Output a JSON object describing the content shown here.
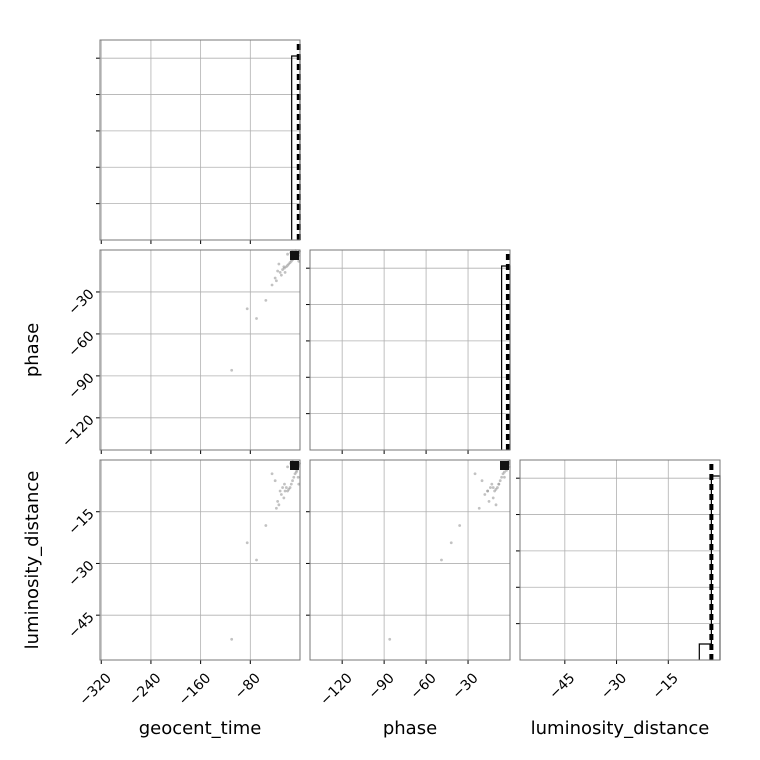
{
  "chart_data": {
    "type": "scatter",
    "kind": "corner-plot",
    "parameters": [
      "geocent_time",
      "phase",
      "luminosity_distance"
    ],
    "axis_labels": {
      "geocent_time": "geocent_time",
      "phase": "phase",
      "luminosity_distance": "luminosity_distance"
    },
    "ranges": {
      "geocent_time": [
        -322,
        0
      ],
      "phase": [
        -143,
        0
      ],
      "luminosity_distance": [
        -58,
        0
      ]
    },
    "ticks": {
      "geocent_time": [
        -320,
        -240,
        -160,
        -80
      ],
      "phase": [
        -120,
        -90,
        -60,
        -30
      ],
      "luminosity_distance": [
        -45,
        -30,
        -15
      ]
    },
    "grid": true,
    "histograms": {
      "geocent_time": {
        "bins": [
          -13.4,
          -3,
          0
        ],
        "counts": [
          0.92,
          0.92
        ]
      },
      "phase": {
        "bins": [
          -6,
          -2,
          0
        ],
        "counts": [
          0.92,
          0.92
        ]
      },
      "luminosity_distance": {
        "bins": [
          -6,
          -2.5,
          0
        ],
        "counts": [
          0.08,
          0.92
        ]
      }
    },
    "truth_lines": {
      "geocent_time": -2,
      "phase": -1.5,
      "luminosity_distance": -2.5
    },
    "samples": {
      "geocent_time": [
        -1,
        -2,
        -3,
        -4,
        -5,
        -6,
        -8,
        -10,
        -12,
        -14,
        -16,
        -18,
        -20,
        -22,
        -25,
        -28,
        -32,
        -30,
        -26,
        -36,
        -40,
        -45,
        -34,
        -20,
        -15,
        -12,
        -7,
        -3,
        -2,
        -24,
        -38,
        -55,
        -70,
        -85,
        -110,
        -3,
        -1
      ],
      "phase": [
        -1,
        -2,
        -1.5,
        -3,
        -2.5,
        -4,
        -5,
        -6,
        -7,
        -8,
        -9,
        -10,
        -11,
        -12,
        -13,
        -14,
        -16,
        -18,
        -12,
        -15,
        -20,
        -25,
        -10,
        -3,
        -2,
        -1,
        -0.5,
        -4,
        -8,
        -16,
        -22,
        -36,
        -49,
        -42,
        -86,
        -2,
        -1
      ],
      "luminosity_distance": [
        -1,
        -1.5,
        -2,
        -2.5,
        -3,
        -3.5,
        -4,
        -5,
        -6,
        -7,
        -8,
        -8.5,
        -9,
        -8,
        -7,
        -8,
        -9,
        -10,
        -11,
        -12,
        -6,
        -4,
        -13,
        -2,
        -1,
        -0.5,
        -2,
        -5,
        -7,
        -9,
        -14,
        -19,
        -29,
        -24,
        -52,
        -1.5,
        -1
      ]
    }
  }
}
